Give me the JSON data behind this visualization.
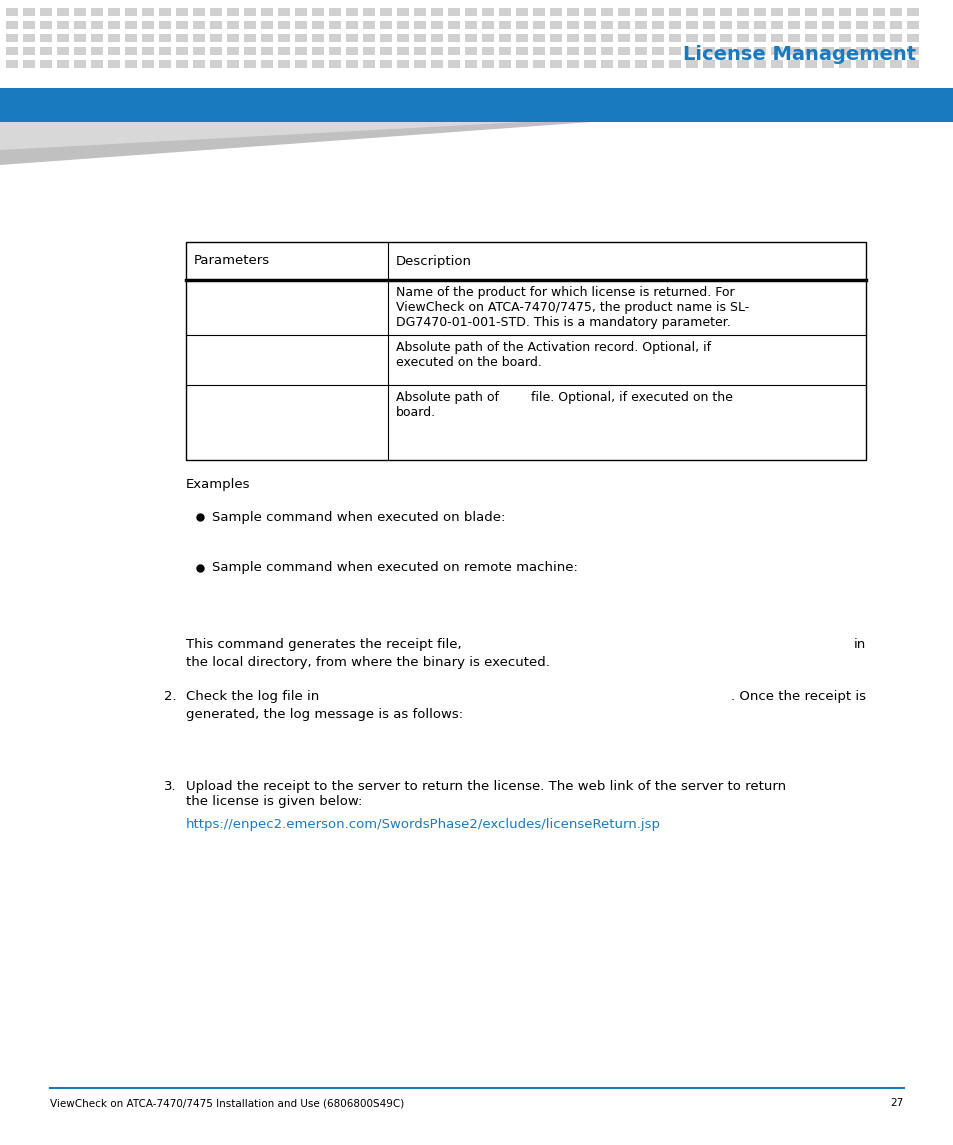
{
  "title": "License Management",
  "title_color": "#1a7abf",
  "bg_color": "#ffffff",
  "header_bar_color": "#1a7abf",
  "dot_pattern_color": "#d0d0d0",
  "footer_text": "ViewCheck on ATCA-7470/7475 Installation and Use (6806800S49C)",
  "footer_page": "27",
  "footer_line_color": "#1a7abf",
  "table_headers": [
    "Parameters",
    "Description"
  ],
  "row_texts": [
    "Name of the product for which license is returned. For\nViewCheck on ATCA-7470/7475, the product name is SL-\nDG7470-01-001-STD. This is a mandatory parameter.",
    "Absolute path of the Activation record. Optional, if\nexecuted on the board.",
    "Absolute path of        file. Optional, if executed on the\nboard."
  ],
  "examples_label": "Examples",
  "bullet1_text": "Sample command when executed on blade:",
  "bullet2_text": "Sample command when executed on remote machine:",
  "body_text1_line1": "This command generates the receipt file,",
  "body_text1_line1_end": "in",
  "body_text1_line2": "the local directory, from where the binary is executed.",
  "step2_num": "2.",
  "step2_text_line1": "Check the log file in",
  "step2_text_line1_end": ". Once the receipt is",
  "step2_text_line2": "generated, the log message is as follows:",
  "step3_num": "3.",
  "step3_text": "Upload the receipt to the server to return the license. The web link of the server to return\nthe license is given below:",
  "step3_link": "https://enpec2.emerson.com/SwordsPhase2/excludes/licenseReturn.jsp",
  "step3_link_color": "#1a7abf"
}
